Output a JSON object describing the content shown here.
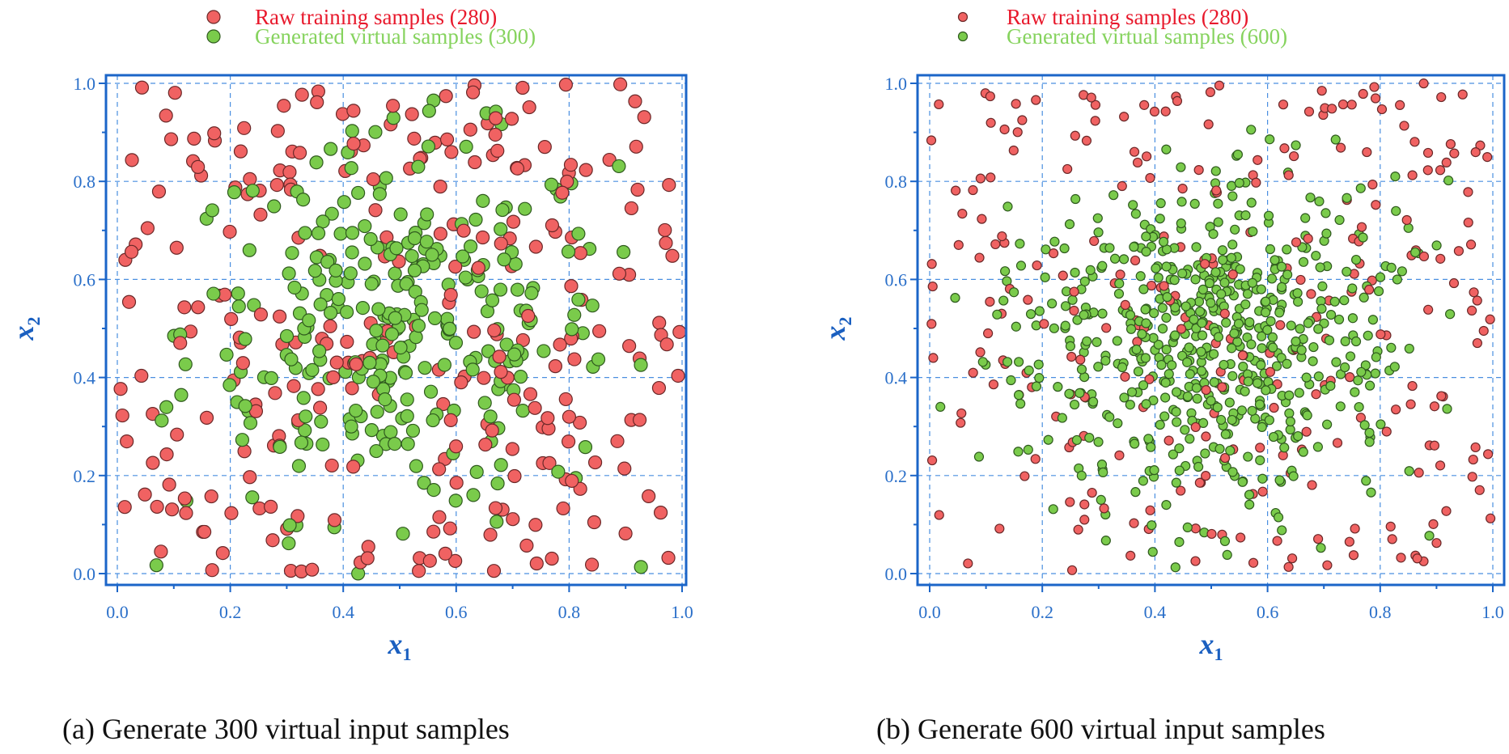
{
  "chart_data": [
    {
      "type": "scatter",
      "xlabel": "x1",
      "ylabel": "x2",
      "xlim": [
        0,
        1
      ],
      "ylim": [
        0,
        1
      ],
      "xticks": [
        "0.0",
        "0.2",
        "0.4",
        "0.6",
        "0.8",
        "1.0"
      ],
      "yticks": [
        "0.0",
        "0.2",
        "0.4",
        "0.6",
        "0.8",
        "1.0"
      ],
      "grid": true,
      "legend_position": "top-center",
      "series": [
        {
          "name": "Raw training samples (280)",
          "count": 280,
          "distribution": "uniform",
          "color": "#f06262",
          "text_color": "#e8192c"
        },
        {
          "name": "Generated virtual samples (300)",
          "count": 300,
          "distribution": "normal",
          "mean": [
            0.5,
            0.5
          ],
          "std": 0.19,
          "color": "#7acb4b",
          "text_color": "#86d35e"
        }
      ],
      "caption": "(a) Generate 300 virtual input samples"
    },
    {
      "type": "scatter",
      "xlabel": "x1",
      "ylabel": "x2",
      "xlim": [
        0,
        1
      ],
      "ylim": [
        0,
        1
      ],
      "xticks": [
        "0.0",
        "0.2",
        "0.4",
        "0.6",
        "0.8",
        "1.0"
      ],
      "yticks": [
        "0.0",
        "0.2",
        "0.4",
        "0.6",
        "0.8",
        "1.0"
      ],
      "grid": true,
      "legend_position": "top-center",
      "series": [
        {
          "name": "Raw training samples (280)",
          "count": 280,
          "distribution": "uniform",
          "color": "#f06262",
          "text_color": "#e8192c"
        },
        {
          "name": "Generated virtual samples (600)",
          "count": 600,
          "distribution": "normal",
          "mean": [
            0.5,
            0.48
          ],
          "std": 0.17,
          "color": "#7acb4b",
          "text_color": "#86d35e"
        }
      ],
      "caption": "(b) Generate 600 virtual input samples"
    }
  ]
}
